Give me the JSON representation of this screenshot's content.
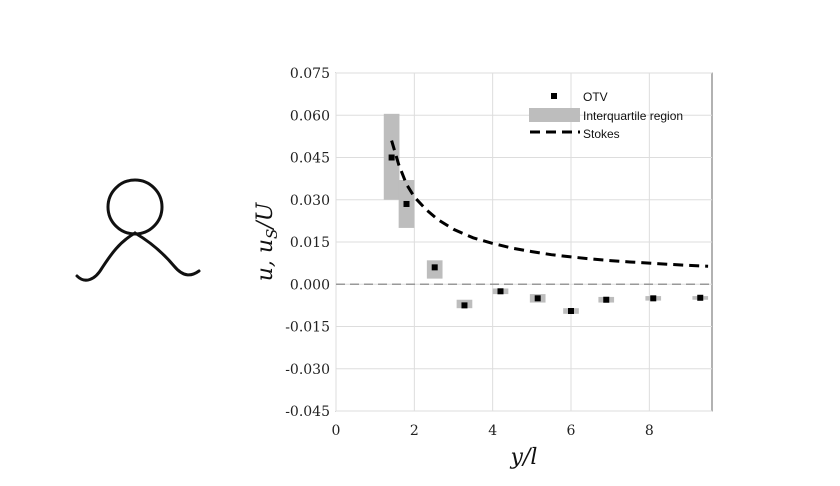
{
  "chart_data": {
    "type": "scatter",
    "xlabel": "y/l",
    "ylabel": "u, u_S/U",
    "ylabel_parts": {
      "main": "u, u",
      "sub": "S",
      "tail": "/U"
    },
    "xlim": [
      0,
      9.6
    ],
    "ylim": [
      -0.045,
      0.075
    ],
    "xticks": [
      0,
      2,
      4,
      6,
      8
    ],
    "xtick_labels": [
      "0",
      "2",
      "4",
      "6",
      "8"
    ],
    "yticks": [
      0.075,
      0.06,
      0.045,
      0.03,
      0.015,
      0.0,
      -0.015,
      -0.03,
      -0.045
    ],
    "ytick_labels": [
      "0.075",
      "0.060",
      "0.045",
      "0.030",
      "0.015",
      "0.000",
      "-0.015",
      "-0.030",
      "-0.045"
    ],
    "grid": true,
    "legend_position": "top-right",
    "legend": [
      "OTV",
      "Interquartile region",
      "Stokes"
    ],
    "series": [
      {
        "name": "OTV",
        "marker": "square",
        "color": "#000000",
        "x": [
          1.42,
          1.8,
          2.52,
          3.28,
          4.2,
          5.15,
          6.0,
          6.9,
          8.1,
          9.3
        ],
        "y": [
          0.045,
          0.0285,
          0.006,
          -0.0075,
          -0.0025,
          -0.005,
          -0.0095,
          -0.0055,
          -0.005,
          -0.0048
        ]
      },
      {
        "name": "Interquartile region",
        "color": "#bdbdbd",
        "x": [
          1.42,
          1.8,
          2.52,
          3.28,
          4.2,
          5.15,
          6.0,
          6.9,
          8.1,
          9.3
        ],
        "q1": [
          0.03,
          0.02,
          0.002,
          -0.0085,
          -0.0035,
          -0.0065,
          -0.0105,
          -0.0065,
          -0.0058,
          -0.0055
        ],
        "q3": [
          0.0605,
          0.037,
          0.0085,
          -0.0055,
          -0.0015,
          -0.0035,
          -0.0085,
          -0.0045,
          -0.0042,
          -0.0042
        ],
        "width": [
          0.4,
          0.4,
          0.4,
          0.4,
          0.4,
          0.4,
          0.4,
          0.4,
          0.4,
          0.4
        ]
      },
      {
        "name": "Stokes",
        "style": "dashed",
        "color": "#000000",
        "x": [
          1.42,
          1.6,
          1.8,
          2.0,
          2.3,
          2.6,
          3.0,
          3.5,
          4.0,
          4.5,
          5.0,
          5.5,
          6.0,
          6.5,
          7.0,
          7.5,
          8.0,
          8.5,
          9.0,
          9.5
        ],
        "y": [
          0.051,
          0.0425,
          0.0355,
          0.031,
          0.0265,
          0.023,
          0.0195,
          0.0165,
          0.0145,
          0.0128,
          0.0116,
          0.0105,
          0.0097,
          0.009,
          0.0084,
          0.0079,
          0.0075,
          0.0071,
          0.0067,
          0.0064
        ]
      },
      {
        "name": "zero",
        "style": "dashed",
        "color": "#999999",
        "y": 0.0
      }
    ]
  }
}
